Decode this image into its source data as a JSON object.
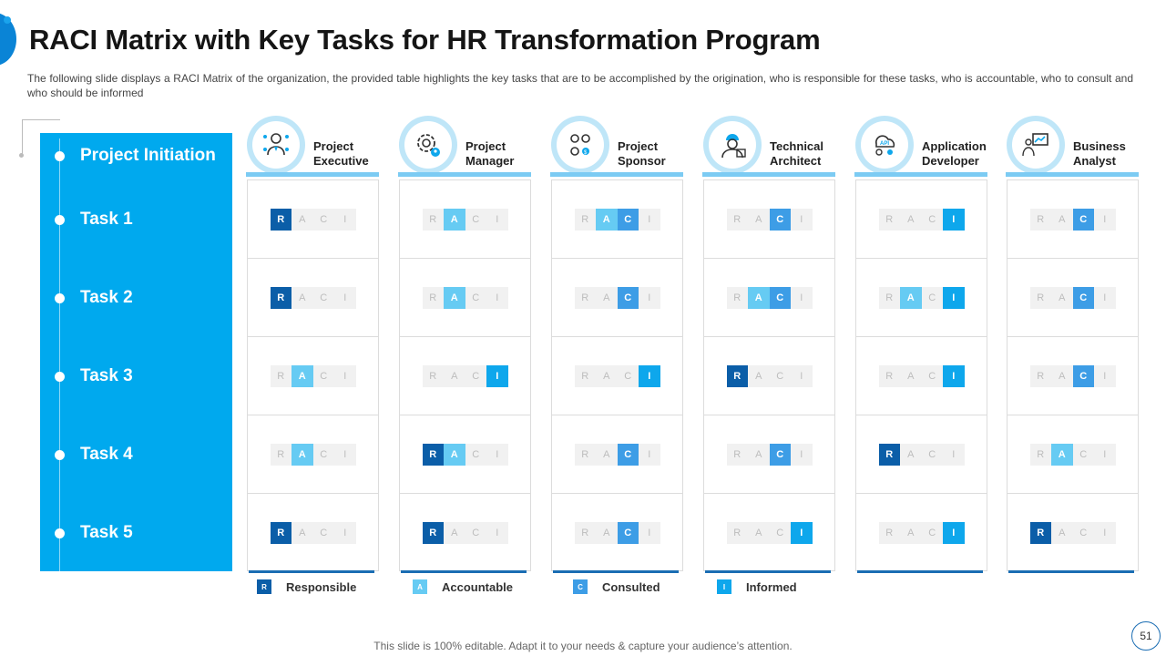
{
  "title": "RACI Matrix with Key Tasks for HR Transformation Program",
  "subtitle": "The following  slide displays a RACI Matrix of the organization, the provided  table highlights the key tasks that are to be accomplished by the origination, who is responsible for these tasks, who is accountable, who to consult and who should be informed",
  "tasks": [
    "Project Initiation",
    "Task 1",
    "Task 2",
    "Task 3",
    "Task 4",
    "Task 5"
  ],
  "letters": [
    "R",
    "A",
    "C",
    "I"
  ],
  "roles": [
    {
      "line1": "Project",
      "line2": "Executive",
      "icon": "executive-icon",
      "assignments": [
        [
          "R"
        ],
        [
          "R"
        ],
        [
          "A"
        ],
        [
          "A"
        ],
        [
          "R"
        ]
      ]
    },
    {
      "line1": "Project",
      "line2": "Manager",
      "icon": "manager-gear-icon",
      "assignments": [
        [
          "A"
        ],
        [
          "A"
        ],
        [
          "I"
        ],
        [
          "R",
          "A"
        ],
        [
          "R"
        ]
      ]
    },
    {
      "line1": "Project",
      "line2": "Sponsor",
      "icon": "sponsor-group-icon",
      "assignments": [
        [
          "A",
          "C"
        ],
        [
          "C"
        ],
        [
          "I"
        ],
        [
          "C"
        ],
        [
          "C"
        ]
      ]
    },
    {
      "line1": "Technical",
      "line2": "Architect",
      "icon": "architect-icon",
      "assignments": [
        [
          "C"
        ],
        [
          "A",
          "C"
        ],
        [
          "R"
        ],
        [
          "C"
        ],
        [
          "I"
        ]
      ]
    },
    {
      "line1": "Application",
      "line2": "Developer",
      "icon": "developer-api-icon",
      "assignments": [
        [
          "I"
        ],
        [
          "A",
          "I"
        ],
        [
          "I"
        ],
        [
          "R"
        ],
        [
          "I"
        ]
      ]
    },
    {
      "line1": "Business",
      "line2": "Analyst",
      "icon": "analyst-presentation-icon",
      "assignments": [
        [
          "C"
        ],
        [
          "C"
        ],
        [
          "C"
        ],
        [
          "A"
        ],
        [
          "R"
        ]
      ]
    }
  ],
  "legend": [
    {
      "letter": "R",
      "label": "Responsible",
      "color": "#0b5ea8"
    },
    {
      "letter": "A",
      "label": "Accountable",
      "color": "#66cbf3"
    },
    {
      "letter": "C",
      "label": "Consulted",
      "color": "#3d9de6"
    },
    {
      "letter": "I",
      "label": "Informed",
      "color": "#0ea7ec"
    }
  ],
  "footer": "This slide is 100% editable. Adapt it to your needs & capture your audience’s attention.",
  "page_number": "51"
}
